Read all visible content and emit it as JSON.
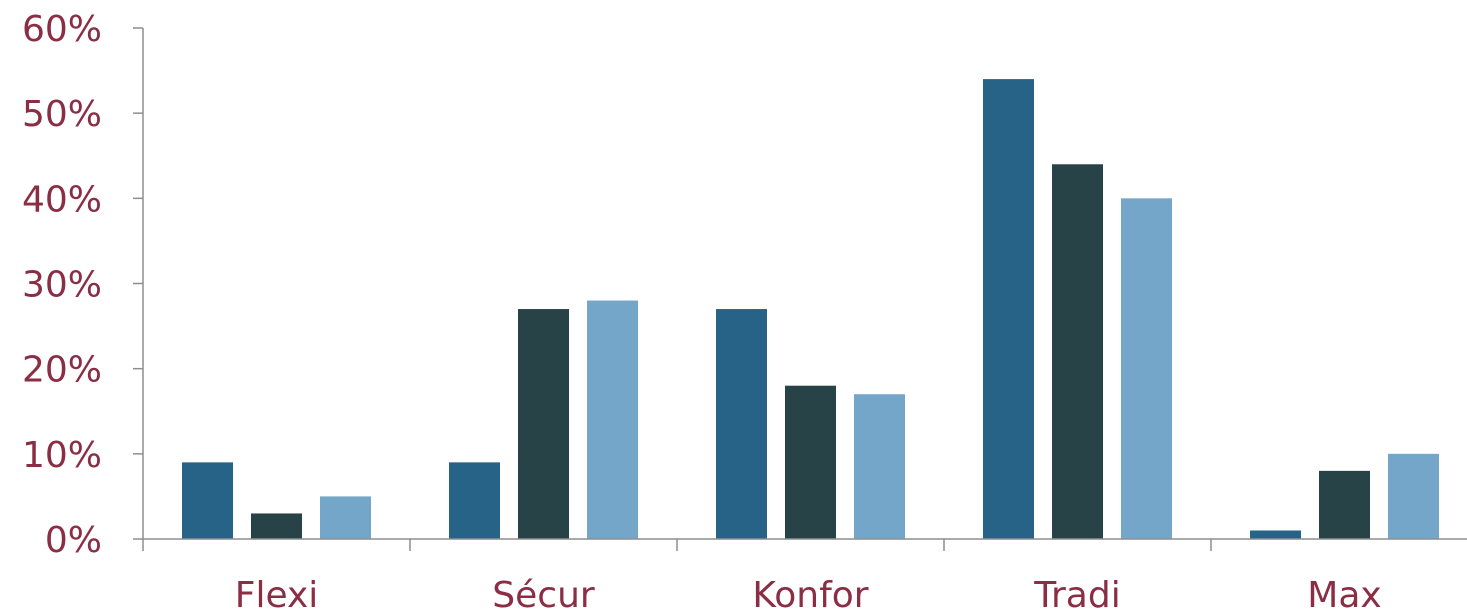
{
  "chart_data": {
    "type": "bar",
    "categories": [
      "Flexi",
      "Sécur",
      "Konfor",
      "Tradi",
      "Max"
    ],
    "series": [
      {
        "values": [
          9,
          9,
          27,
          54,
          1
        ]
      },
      {
        "values": [
          3,
          27,
          18,
          44,
          8
        ]
      },
      {
        "values": [
          5,
          28,
          17,
          40,
          10
        ]
      }
    ],
    "ylim": [
      0,
      60
    ],
    "yticks": [
      0,
      10,
      20,
      30,
      40,
      50,
      60
    ],
    "ytick_labels": [
      "0%",
      "10%",
      "20%",
      "30%",
      "40%",
      "50%",
      "60%"
    ],
    "grid": false,
    "legend": "none"
  },
  "colors": {
    "series": [
      "#266387",
      "#284347",
      "#73a6c8"
    ],
    "axis": "#8e8e8e",
    "label": "#8b2e45"
  }
}
